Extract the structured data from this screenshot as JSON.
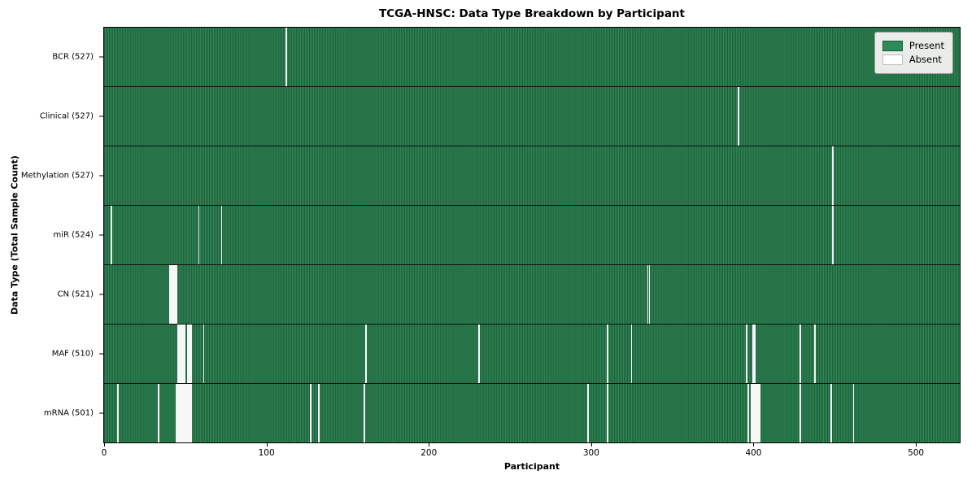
{
  "chart_data": {
    "type": "heatmap",
    "title": "TCGA-HNSC: Data Type Breakdown by Participant",
    "xlabel": "Participant",
    "ylabel": "Data Type (Total Sample Count)",
    "x_ticks": [
      0,
      100,
      200,
      300,
      400,
      500
    ],
    "x_range": [
      0,
      527
    ],
    "n_participants": 528,
    "grid": false,
    "legend_position": "upper-right",
    "legend": [
      {
        "label": "Present",
        "color": "#2e8b57"
      },
      {
        "label": "Absent",
        "color": "#ffffff"
      }
    ],
    "colors": {
      "present": "#2e8b57",
      "present_edge": "#1f5c3a",
      "absent_mark": "#f7f7f7",
      "legend_bg": "#e9ece9"
    },
    "rows": [
      {
        "data_type": "BCR",
        "label": "BCR (527)",
        "present_count": 527,
        "absent_participants": [
          112
        ]
      },
      {
        "data_type": "Clinical",
        "label": "Clinical (527)",
        "present_count": 527,
        "absent_participants": [
          391
        ]
      },
      {
        "data_type": "Methylation",
        "label": "Methylation (527)",
        "present_count": 527,
        "absent_participants": [
          449
        ]
      },
      {
        "data_type": "miR",
        "label": "miR (524)",
        "present_count": 524,
        "absent_participants": [
          4,
          58,
          72,
          449
        ]
      },
      {
        "data_type": "CN",
        "label": "CN (521)",
        "present_count": 521,
        "absent_participants": [
          40,
          41,
          42,
          43,
          44,
          335,
          336
        ]
      },
      {
        "data_type": "MAF",
        "label": "MAF (510)",
        "present_count": 510,
        "absent_participants": [
          45,
          46,
          47,
          48,
          49,
          51,
          52,
          53,
          61,
          161,
          231,
          310,
          325,
          396,
          400,
          401,
          429,
          438
        ]
      },
      {
        "data_type": "mRNA",
        "label": "mRNA (501)",
        "present_count": 501,
        "absent_participants": [
          8,
          33,
          44,
          45,
          46,
          47,
          48,
          49,
          50,
          51,
          52,
          53,
          127,
          132,
          160,
          298,
          310,
          397,
          399,
          400,
          401,
          402,
          403,
          404,
          429,
          448,
          462
        ]
      }
    ]
  }
}
